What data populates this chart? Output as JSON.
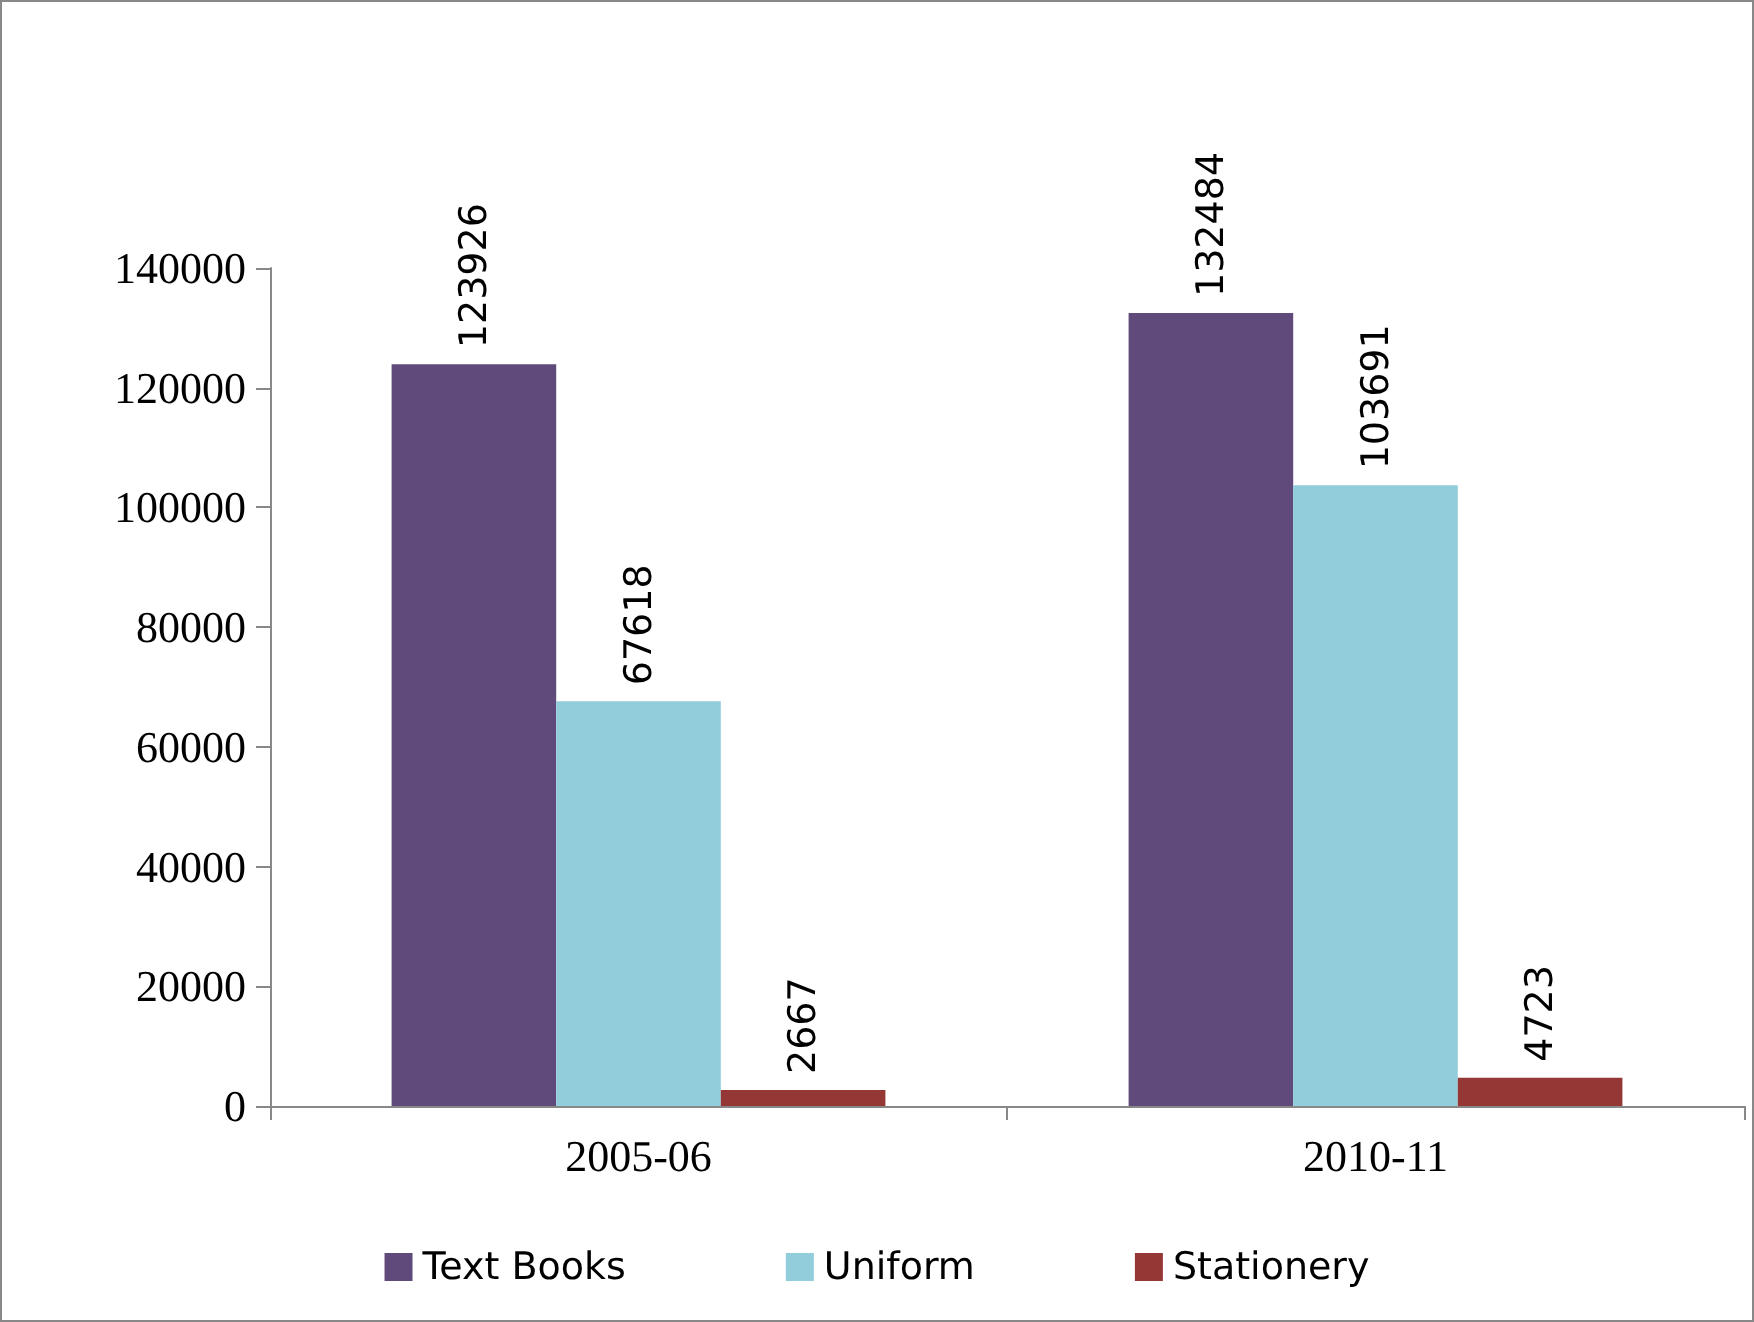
{
  "chart_data": {
    "type": "bar",
    "categories": [
      "2005-06",
      "2010-11"
    ],
    "series": [
      {
        "name": "Text Books",
        "color": "#604a7b",
        "values": [
          123926,
          132484
        ]
      },
      {
        "name": "Uniform",
        "color": "#92cddc",
        "values": [
          67618,
          103691
        ]
      },
      {
        "name": "Stationery",
        "color": "#953735",
        "values": [
          2667,
          4723
        ]
      }
    ],
    "ylim": [
      0,
      140000
    ],
    "yticks": [
      0,
      20000,
      40000,
      60000,
      80000,
      100000,
      120000,
      140000
    ],
    "grid": false,
    "legend": "bottom",
    "data_labels": true
  }
}
